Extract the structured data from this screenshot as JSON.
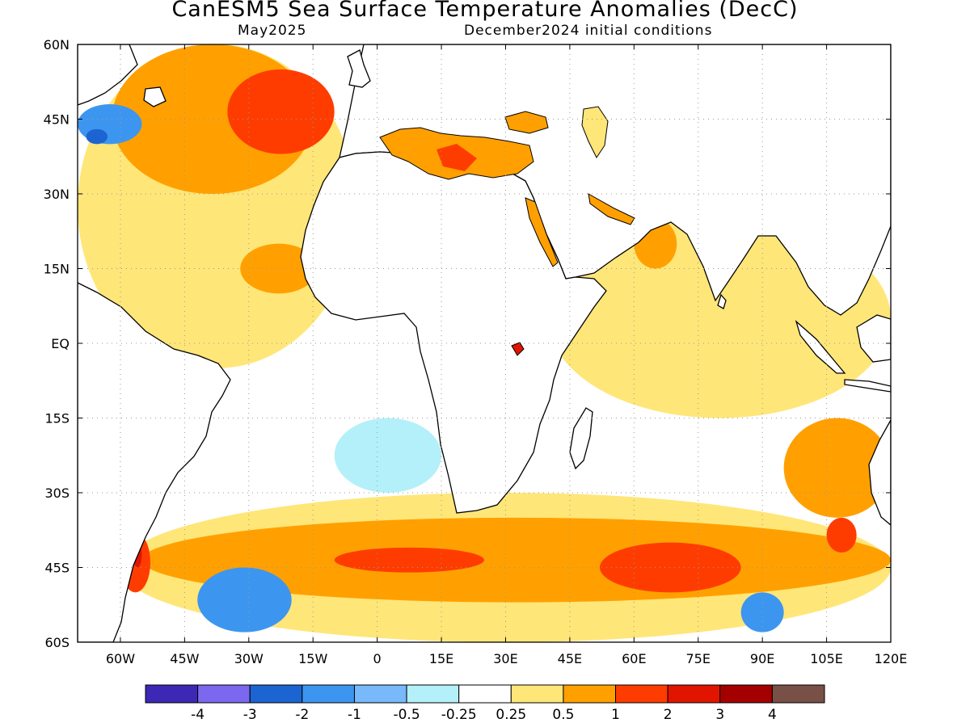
{
  "title": "CanESM5 Sea Surface Temperature Anomalies (DecC)",
  "subtitle_left": "May2025",
  "subtitle_right": "December2024 initial conditions",
  "map": {
    "lon_range": [
      -70,
      120
    ],
    "lat_range": [
      -60,
      60
    ],
    "lon_ticks": [
      {
        "v": -60,
        "label": "60W"
      },
      {
        "v": -45,
        "label": "45W"
      },
      {
        "v": -30,
        "label": "30W"
      },
      {
        "v": -15,
        "label": "15W"
      },
      {
        "v": 0,
        "label": "0"
      },
      {
        "v": 15,
        "label": "15E"
      },
      {
        "v": 30,
        "label": "30E"
      },
      {
        "v": 45,
        "label": "45E"
      },
      {
        "v": 60,
        "label": "60E"
      },
      {
        "v": 75,
        "label": "75E"
      },
      {
        "v": 90,
        "label": "90E"
      },
      {
        "v": 105,
        "label": "105E"
      },
      {
        "v": 120,
        "label": "120E"
      }
    ],
    "lat_ticks": [
      {
        "v": 60,
        "label": "60N"
      },
      {
        "v": 45,
        "label": "45N"
      },
      {
        "v": 30,
        "label": "30N"
      },
      {
        "v": 15,
        "label": "15N"
      },
      {
        "v": 0,
        "label": "EQ"
      },
      {
        "v": -15,
        "label": "15S"
      },
      {
        "v": -30,
        "label": "30S"
      },
      {
        "v": -45,
        "label": "45S"
      },
      {
        "v": -60,
        "label": "60S"
      }
    ],
    "grid": "dotted"
  },
  "colorbar": {
    "colors": [
      "#3c28b4",
      "#7b68ee",
      "#1c64d2",
      "#3c96f0",
      "#78b9fa",
      "#b4f0fa",
      "#ffffff",
      "#ffe678",
      "#ffa000",
      "#ff3c00",
      "#e11400",
      "#a50000",
      "#785046"
    ],
    "labels": [
      "-4",
      "-3",
      "-2",
      "-1",
      "-0.5",
      "-0.25",
      "0.25",
      "0.5",
      "1",
      "2",
      "3",
      "4"
    ]
  },
  "anomaly_regions": [
    {
      "level": "0.5",
      "color": "#ffe678",
      "lon": [
        -70,
        -5
      ],
      "lat": [
        -5,
        60
      ]
    },
    {
      "level": "1",
      "color": "#ffa000",
      "lon": [
        -62,
        -15
      ],
      "lat": [
        30,
        60
      ]
    },
    {
      "level": "2",
      "color": "#ff3c00",
      "lon": [
        -35,
        -10
      ],
      "lat": [
        38,
        55
      ]
    },
    {
      "level": "1",
      "color": "#ffa000",
      "lon": [
        -32,
        -14
      ],
      "lat": [
        10,
        20
      ]
    },
    {
      "level": "-1",
      "color": "#3c96f0",
      "lon": [
        -70,
        -55
      ],
      "lat": [
        40,
        48
      ]
    },
    {
      "level": "-2",
      "color": "#1c64d2",
      "lon": [
        -68,
        -63
      ],
      "lat": [
        40,
        43
      ]
    },
    {
      "level": "0.5",
      "color": "#ffe678",
      "lon": [
        40,
        120
      ],
      "lat": [
        -15,
        25
      ]
    },
    {
      "level": "1",
      "color": "#ffa000",
      "lon": [
        60,
        70
      ],
      "lat": [
        15,
        25
      ]
    },
    {
      "level": "0.5",
      "color": "#ffe678",
      "lon": [
        -60,
        120
      ],
      "lat": [
        -60,
        -30
      ]
    },
    {
      "level": "1",
      "color": "#ffa000",
      "lon": [
        -55,
        120
      ],
      "lat": [
        -52,
        -35
      ]
    },
    {
      "level": "2",
      "color": "#ff3c00",
      "lon": [
        -10,
        25
      ],
      "lat": [
        -46,
        -41
      ]
    },
    {
      "level": "2",
      "color": "#ff3c00",
      "lon": [
        52,
        85
      ],
      "lat": [
        -50,
        -40
      ]
    },
    {
      "level": "2",
      "color": "#ff3c00",
      "lon": [
        -60,
        -53
      ],
      "lat": [
        -50,
        -38
      ]
    },
    {
      "level": "3",
      "color": "#e11400",
      "lon": [
        -57,
        -55
      ],
      "lat": [
        -45,
        -40
      ]
    },
    {
      "level": "-1",
      "color": "#3c96f0",
      "lon": [
        -42,
        -20
      ],
      "lat": [
        -58,
        -45
      ]
    },
    {
      "level": "-1",
      "color": "#3c96f0",
      "lon": [
        85,
        95
      ],
      "lat": [
        -58,
        -50
      ]
    },
    {
      "level": "-0.25",
      "color": "#b4f0fa",
      "lon": [
        -10,
        15
      ],
      "lat": [
        -30,
        -15
      ]
    },
    {
      "level": "1",
      "color": "#ffa000",
      "lon": [
        95,
        120
      ],
      "lat": [
        -35,
        -15
      ]
    },
    {
      "level": "2",
      "color": "#ff3c00",
      "lon": [
        105,
        112
      ],
      "lat": [
        -42,
        -35
      ]
    },
    {
      "level": "1",
      "color": "#ffa000",
      "lon": [
        0,
        35
      ],
      "lat": [
        30,
        45
      ]
    },
    {
      "level": "2",
      "color": "#ff3c00",
      "lon": [
        12,
        20
      ],
      "lat": [
        32,
        38
      ]
    }
  ]
}
